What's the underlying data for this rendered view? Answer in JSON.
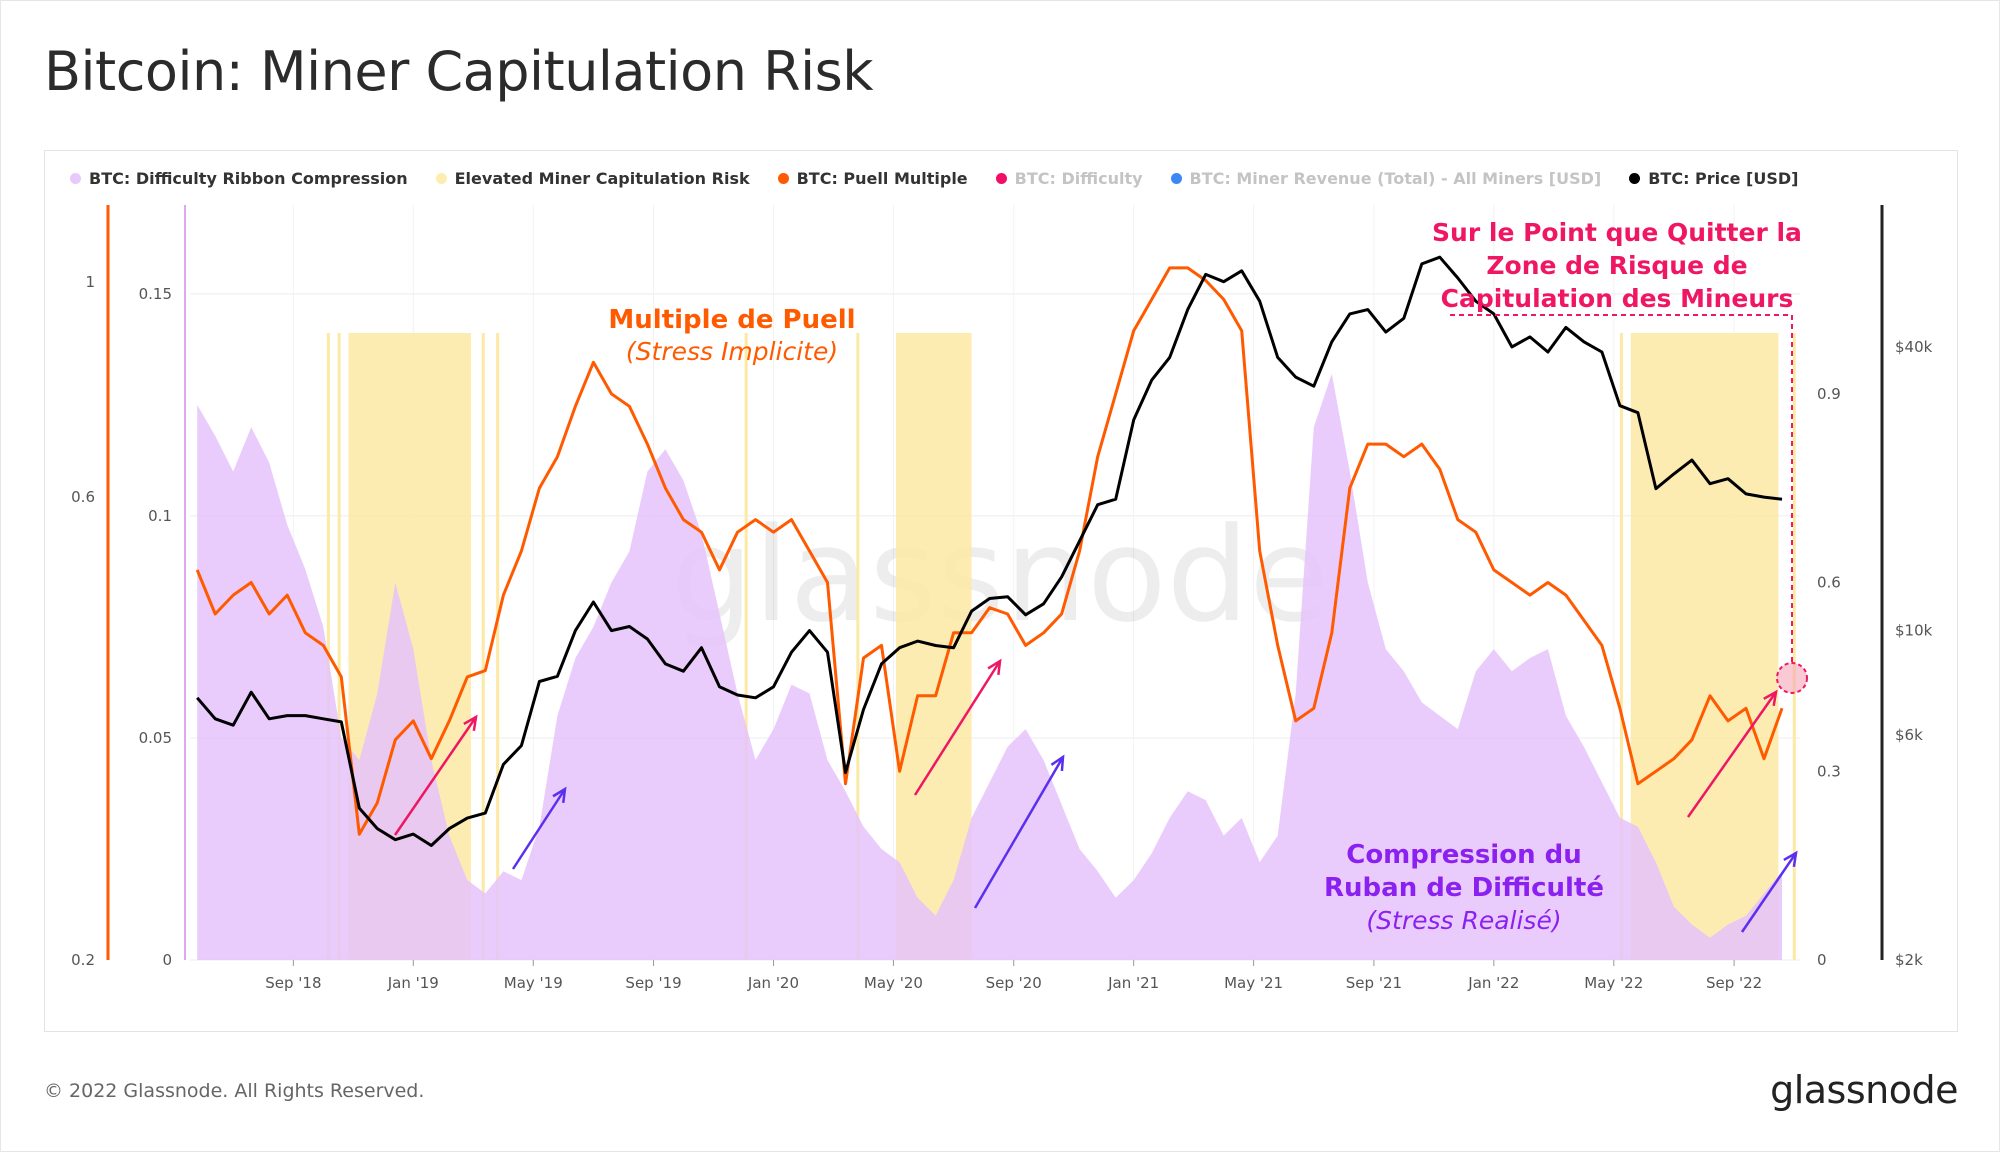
{
  "title": "Bitcoin: Miner Capitulation Risk",
  "footer": {
    "copyright": "© 2022 Glassnode. All Rights Reserved.",
    "logo": "glassnode"
  },
  "watermark": "glassnode",
  "colors": {
    "ribbon": "#e5c3fa",
    "risk": "#fce9a4",
    "puell": "#ff5a00",
    "difficulty": "#f20d66",
    "revenue": "#3d87f5",
    "price": "#000000",
    "annot_pink": "#ef1764",
    "annot_orange": "#ff5a00",
    "annot_purple": "#8b21f0",
    "arrow_blue": "#5b2ff0"
  },
  "legend": [
    {
      "label": "BTC: Difficulty Ribbon Compression",
      "color": "#e9c8fb",
      "muted": false
    },
    {
      "label": "Elevated Miner Capitulation Risk",
      "color": "#fbeeb0",
      "muted": false
    },
    {
      "label": "BTC: Puell Multiple",
      "color": "#ff5a00",
      "muted": false
    },
    {
      "label": "BTC: Difficulty",
      "color": "#f20d66",
      "muted": true
    },
    {
      "label": "BTC: Miner Revenue (Total) - All Miners [USD]",
      "color": "#3d87f5",
      "muted": true
    },
    {
      "label": "BTC: Price [USD]",
      "color": "#000000",
      "muted": false
    }
  ],
  "annotations": {
    "puell_title": "Multiple de Puell",
    "puell_sub": "(Stress Implicite)",
    "ribbon_title_1": "Compression du",
    "ribbon_title_2": "Ruban de Difficulté",
    "ribbon_sub": "(Stress Realisé)",
    "exit_1": "Sur le Point que Quitter la",
    "exit_2": "Zone de Risque de",
    "exit_3": "Capitulation des Mineurs"
  },
  "chart_data": {
    "type": "line",
    "title": "Bitcoin: Miner Capitulation Risk",
    "x_range": [
      2018.38,
      2022.85
    ],
    "x_ticks": [
      {
        "label": "Sep '18",
        "x": 2018.667
      },
      {
        "label": "Jan '19",
        "x": 2019.0
      },
      {
        "label": "May '19",
        "x": 2019.333
      },
      {
        "label": "Sep '19",
        "x": 2019.667
      },
      {
        "label": "Jan '20",
        "x": 2020.0
      },
      {
        "label": "May '20",
        "x": 2020.333
      },
      {
        "label": "Sep '20",
        "x": 2020.667
      },
      {
        "label": "Jan '21",
        "x": 2021.0
      },
      {
        "label": "May '21",
        "x": 2021.333
      },
      {
        "label": "Sep '21",
        "x": 2021.667
      },
      {
        "label": "Jan '22",
        "x": 2022.0
      },
      {
        "label": "May '22",
        "x": 2022.333
      },
      {
        "label": "Sep '22",
        "x": 2022.667
      }
    ],
    "axes": {
      "difficulty_log": {
        "ticks": [
          "0.2",
          "0.6",
          "1"
        ],
        "values": [
          0.2,
          0.6,
          1.0
        ]
      },
      "ribbon": {
        "ticks": [
          "0",
          "0.05",
          "0.1",
          "0.15"
        ],
        "values": [
          0,
          0.05,
          0.1,
          0.15
        ],
        "range": [
          0,
          0.17
        ]
      },
      "puell": {
        "ticks": [
          "0",
          "0.3",
          "0.6",
          "0.9"
        ],
        "values": [
          0,
          0.3,
          0.6,
          0.9
        ],
        "range": [
          0,
          1.2
        ]
      },
      "price_log": {
        "ticks": [
          "$2k",
          "$6k",
          "$10k",
          "$40k"
        ],
        "values": [
          2000,
          6000,
          10000,
          40000
        ],
        "range": [
          2000,
          80000
        ]
      }
    },
    "risk_zones": [
      [
        2018.82,
        2019.16
      ],
      [
        2020.34,
        2020.55
      ],
      [
        2022.38,
        2022.79
      ]
    ],
    "risk_thin_lines": [
      2018.76,
      2018.79,
      2019.19,
      2019.23,
      2019.92,
      2020.23,
      2022.35,
      2022.83
    ],
    "series": [
      {
        "name": "BTC: Difficulty Ribbon Compression",
        "axis": "ribbon",
        "kind": "area",
        "x": [
          2018.4,
          2018.45,
          2018.5,
          2018.55,
          2018.6,
          2018.65,
          2018.7,
          2018.75,
          2018.8,
          2018.85,
          2018.9,
          2018.95,
          2019.0,
          2019.05,
          2019.1,
          2019.15,
          2019.2,
          2019.25,
          2019.3,
          2019.35,
          2019.4,
          2019.45,
          2019.5,
          2019.55,
          2019.6,
          2019.65,
          2019.7,
          2019.75,
          2019.8,
          2019.85,
          2019.9,
          2019.95,
          2020.0,
          2020.05,
          2020.1,
          2020.15,
          2020.2,
          2020.25,
          2020.3,
          2020.35,
          2020.4,
          2020.45,
          2020.5,
          2020.55,
          2020.6,
          2020.65,
          2020.7,
          2020.75,
          2020.8,
          2020.85,
          2020.9,
          2020.95,
          2021.0,
          2021.05,
          2021.1,
          2021.15,
          2021.2,
          2021.25,
          2021.3,
          2021.35,
          2021.4,
          2021.45,
          2021.5,
          2021.55,
          2021.6,
          2021.65,
          2021.7,
          2021.75,
          2021.8,
          2021.85,
          2021.9,
          2021.95,
          2022.0,
          2022.05,
          2022.1,
          2022.15,
          2022.2,
          2022.25,
          2022.3,
          2022.35,
          2022.4,
          2022.45,
          2022.5,
          2022.55,
          2022.6,
          2022.65,
          2022.7,
          2022.75,
          2022.8
        ],
        "values": [
          0.125,
          0.118,
          0.11,
          0.12,
          0.112,
          0.098,
          0.088,
          0.075,
          0.05,
          0.045,
          0.06,
          0.085,
          0.07,
          0.045,
          0.028,
          0.018,
          0.015,
          0.02,
          0.018,
          0.03,
          0.055,
          0.068,
          0.075,
          0.085,
          0.092,
          0.11,
          0.115,
          0.108,
          0.096,
          0.078,
          0.06,
          0.045,
          0.052,
          0.062,
          0.06,
          0.045,
          0.038,
          0.03,
          0.025,
          0.022,
          0.014,
          0.01,
          0.018,
          0.032,
          0.04,
          0.048,
          0.052,
          0.045,
          0.035,
          0.025,
          0.02,
          0.014,
          0.018,
          0.024,
          0.032,
          0.038,
          0.036,
          0.028,
          0.032,
          0.022,
          0.028,
          0.06,
          0.12,
          0.132,
          0.11,
          0.085,
          0.07,
          0.065,
          0.058,
          0.055,
          0.052,
          0.065,
          0.07,
          0.065,
          0.068,
          0.07,
          0.055,
          0.048,
          0.04,
          0.032,
          0.03,
          0.022,
          0.012,
          0.008,
          0.005,
          0.008,
          0.01,
          0.015,
          0.02
        ]
      },
      {
        "name": "BTC: Puell Multiple",
        "axis": "puell",
        "kind": "line",
        "x": [
          2018.4,
          2018.45,
          2018.5,
          2018.55,
          2018.6,
          2018.65,
          2018.7,
          2018.75,
          2018.8,
          2018.85,
          2018.9,
          2018.95,
          2019.0,
          2019.05,
          2019.1,
          2019.15,
          2019.2,
          2019.25,
          2019.3,
          2019.35,
          2019.4,
          2019.45,
          2019.5,
          2019.55,
          2019.6,
          2019.65,
          2019.7,
          2019.75,
          2019.8,
          2019.85,
          2019.9,
          2019.95,
          2020.0,
          2020.05,
          2020.1,
          2020.15,
          2020.2,
          2020.25,
          2020.3,
          2020.35,
          2020.4,
          2020.45,
          2020.5,
          2020.55,
          2020.6,
          2020.65,
          2020.7,
          2020.75,
          2020.8,
          2020.85,
          2020.9,
          2020.95,
          2021.0,
          2021.05,
          2021.1,
          2021.15,
          2021.2,
          2021.25,
          2021.3,
          2021.35,
          2021.4,
          2021.45,
          2021.5,
          2021.55,
          2021.6,
          2021.65,
          2021.7,
          2021.75,
          2021.8,
          2021.85,
          2021.9,
          2021.95,
          2022.0,
          2022.05,
          2022.1,
          2022.15,
          2022.2,
          2022.25,
          2022.3,
          2022.35,
          2022.4,
          2022.45,
          2022.5,
          2022.55,
          2022.6,
          2022.65,
          2022.7,
          2022.75,
          2022.8
        ],
        "values": [
          0.62,
          0.55,
          0.58,
          0.6,
          0.55,
          0.58,
          0.52,
          0.5,
          0.45,
          0.2,
          0.25,
          0.35,
          0.38,
          0.32,
          0.38,
          0.45,
          0.46,
          0.58,
          0.65,
          0.75,
          0.8,
          0.88,
          0.95,
          0.9,
          0.88,
          0.82,
          0.75,
          0.7,
          0.68,
          0.62,
          0.68,
          0.7,
          0.68,
          0.7,
          0.65,
          0.6,
          0.28,
          0.48,
          0.5,
          0.3,
          0.42,
          0.42,
          0.52,
          0.52,
          0.56,
          0.55,
          0.5,
          0.52,
          0.55,
          0.65,
          0.8,
          0.9,
          1.0,
          1.05,
          1.1,
          1.1,
          1.08,
          1.05,
          1.0,
          0.65,
          0.5,
          0.38,
          0.4,
          0.52,
          0.75,
          0.82,
          0.82,
          0.8,
          0.82,
          0.78,
          0.7,
          0.68,
          0.62,
          0.6,
          0.58,
          0.6,
          0.58,
          0.54,
          0.5,
          0.4,
          0.28,
          0.3,
          0.32,
          0.35,
          0.42,
          0.38,
          0.4,
          0.32,
          0.4
        ]
      },
      {
        "name": "BTC: Price [USD]",
        "axis": "price_log",
        "kind": "line",
        "x": [
          2018.4,
          2018.45,
          2018.5,
          2018.55,
          2018.6,
          2018.65,
          2018.7,
          2018.75,
          2018.8,
          2018.85,
          2018.9,
          2018.95,
          2019.0,
          2019.05,
          2019.1,
          2019.15,
          2019.2,
          2019.25,
          2019.3,
          2019.35,
          2019.4,
          2019.45,
          2019.5,
          2019.55,
          2019.6,
          2019.65,
          2019.7,
          2019.75,
          2019.8,
          2019.85,
          2019.9,
          2019.95,
          2020.0,
          2020.05,
          2020.1,
          2020.15,
          2020.2,
          2020.25,
          2020.3,
          2020.35,
          2020.4,
          2020.45,
          2020.5,
          2020.55,
          2020.6,
          2020.65,
          2020.7,
          2020.75,
          2020.8,
          2020.85,
          2020.9,
          2020.95,
          2021.0,
          2021.05,
          2021.1,
          2021.15,
          2021.2,
          2021.25,
          2021.3,
          2021.35,
          2021.4,
          2021.45,
          2021.5,
          2021.55,
          2021.6,
          2021.65,
          2021.7,
          2021.75,
          2021.8,
          2021.85,
          2021.9,
          2021.95,
          2022.0,
          2022.05,
          2022.1,
          2022.15,
          2022.2,
          2022.25,
          2022.3,
          2022.35,
          2022.4,
          2022.45,
          2022.5,
          2022.55,
          2022.6,
          2022.65,
          2022.7,
          2022.75,
          2022.8
        ],
        "values": [
          7200,
          6500,
          6300,
          7400,
          6500,
          6600,
          6600,
          6500,
          6400,
          4200,
          3800,
          3600,
          3700,
          3500,
          3800,
          4000,
          4100,
          5200,
          5700,
          7800,
          8000,
          10000,
          11500,
          10000,
          10200,
          9600,
          8500,
          8200,
          9200,
          7600,
          7300,
          7200,
          7600,
          9000,
          10000,
          9000,
          5000,
          6800,
          8500,
          9200,
          9500,
          9300,
          9200,
          11000,
          11700,
          11800,
          10800,
          11400,
          13000,
          15500,
          18500,
          19000,
          28000,
          34000,
          38000,
          48000,
          57000,
          55000,
          58000,
          50000,
          38000,
          34500,
          33000,
          41000,
          47000,
          48000,
          43000,
          46000,
          60000,
          62000,
          56000,
          50000,
          47000,
          40000,
          42000,
          39000,
          44000,
          41000,
          39000,
          30000,
          29000,
          20000,
          21500,
          23000,
          20500,
          21000,
          19500,
          19200,
          19000
        ]
      }
    ]
  }
}
